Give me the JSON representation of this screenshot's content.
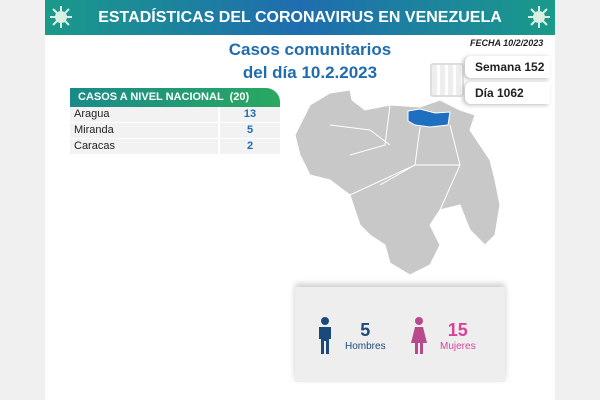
{
  "header": {
    "title": "ESTADÍSTICAS DEL CORONAVIRUS EN VENEZUELA"
  },
  "subtitle": {
    "line1": "Casos comunitarios",
    "line2": "del día 10.2.2023"
  },
  "fecha": "FECHA 10/2/2023",
  "semana": "Semana 152",
  "dia": "Día 1062",
  "table": {
    "header": "CASOS A NIVEL NACIONAL  (20)",
    "rows": [
      {
        "name": "Aragua",
        "value": "13"
      },
      {
        "name": "Miranda",
        "value": "5"
      },
      {
        "name": "Caracas",
        "value": "2"
      }
    ]
  },
  "gender": {
    "men": {
      "value": "5",
      "label": "Hombres",
      "color": "#1b4a7a"
    },
    "women": {
      "value": "15",
      "label": "Mujeres",
      "color": "#d6449a"
    }
  },
  "colors": {
    "highlight": "#1f6fc0",
    "map": "#c8c8c8"
  }
}
